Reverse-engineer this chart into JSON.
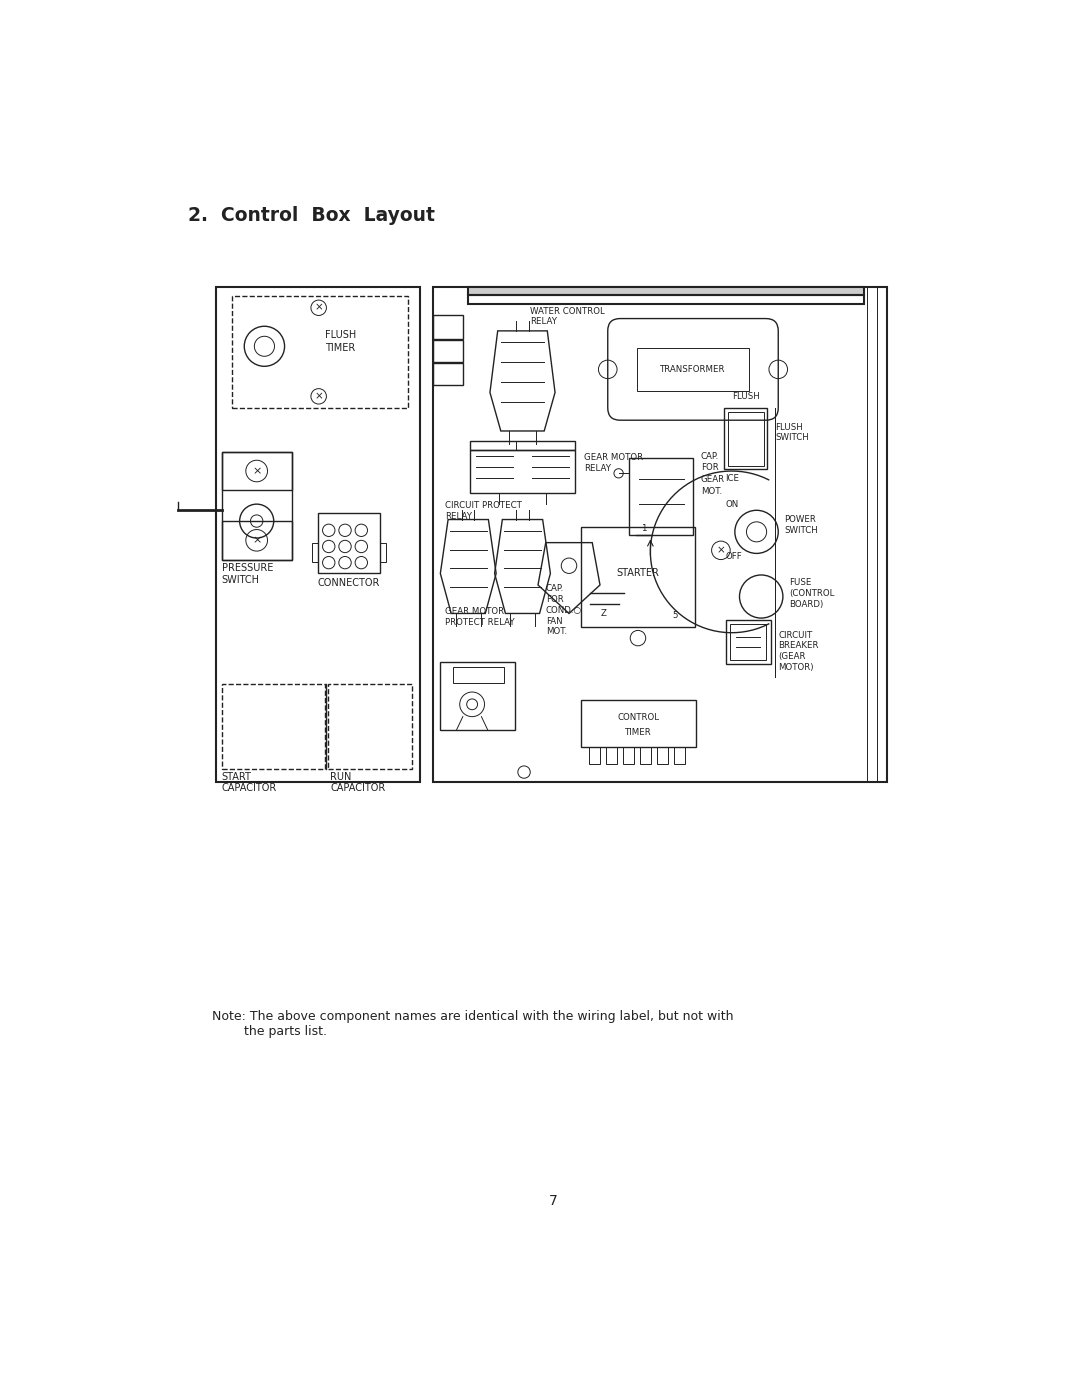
{
  "title": "2.  Control  Box  Layout",
  "note_line1": "Note: The above component names are identical with the wiring label, but not with",
  "note_line2": "        the parts list.",
  "page_number": "7",
  "bg_color": "#ffffff",
  "line_color": "#222222",
  "title_fontsize": 13.5,
  "body_fontsize": 7.0,
  "small_fontsize": 6.2
}
